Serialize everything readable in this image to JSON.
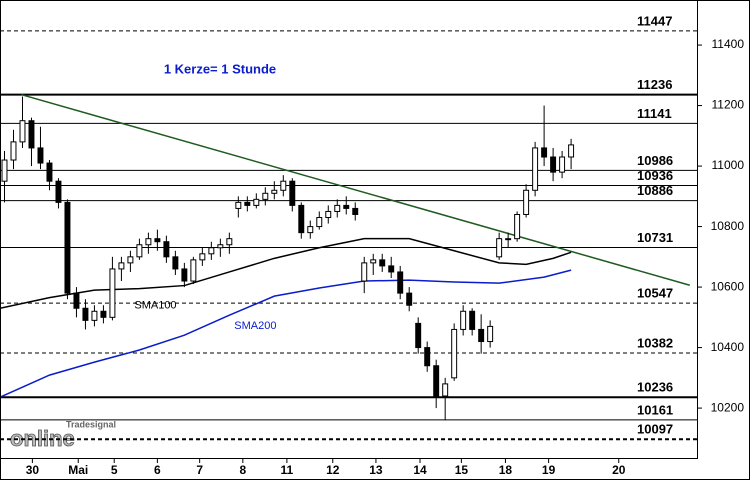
{
  "chart_data": {
    "type": "candlestick",
    "annotation": "1 Kerze= 1 Stunde",
    "watermark": [
      "Tradesignal",
      "online"
    ],
    "xlim": [
      -0.5,
      77
    ],
    "xticks": [
      {
        "value": 3.1,
        "label": "30"
      },
      {
        "value": 8.2,
        "label": "Mai"
      },
      {
        "value": 12.2,
        "label": "5"
      },
      {
        "value": 17,
        "label": "6"
      },
      {
        "value": 21.7,
        "label": "7"
      },
      {
        "value": 26.5,
        "label": "8"
      },
      {
        "value": 31.4,
        "label": "11"
      },
      {
        "value": 36.5,
        "label": "12"
      },
      {
        "value": 41.3,
        "label": "13"
      },
      {
        "value": 46.2,
        "label": "14"
      },
      {
        "value": 50.8,
        "label": "15"
      },
      {
        "value": 55.7,
        "label": "18"
      },
      {
        "value": 60.5,
        "label": "19"
      },
      {
        "value": 68.3,
        "label": "20"
      }
    ],
    "ylim": [
      10035,
      11549
    ],
    "yticks": [
      10200,
      10400,
      10600,
      10800,
      11000,
      11200,
      11400
    ],
    "levels": [
      11447,
      11236,
      11141,
      10986,
      10936,
      10886,
      10731,
      10547,
      10382,
      10236,
      10161,
      10097
    ],
    "level_styles": [
      "dashed",
      "bold",
      "solid",
      "solid",
      "solid",
      "solid",
      "solid",
      "dashed",
      "dashed",
      "bold",
      "solid",
      "bold-dashed"
    ],
    "up_color": "#ffffff",
    "down_color": "#000000",
    "open": [
      10950,
      11020,
      11080,
      11150,
      11060,
      11010,
      10950,
      10880,
      10580,
      10530,
      10490,
      10520,
      10500,
      10660,
      10680,
      10700,
      10740,
      10760,
      10750,
      10700,
      10660,
      10620,
      10690,
      10710,
      10730,
      10740,
      10860,
      10880,
      10870,
      10890,
      10910,
      10920,
      10950,
      10870,
      10780,
      10800,
      10830,
      10850,
      10870,
      10860,
      10620,
      10680,
      10690,
      10670,
      10650,
      10580,
      10480,
      10400,
      10340,
      10240,
      10300,
      10460,
      10520,
      10460,
      10420,
      10700,
      10760,
      10760,
      10840,
      10920,
      11060,
      11030,
      10980,
      11030
    ],
    "high": [
      11050,
      11120,
      11230,
      11160,
      11130,
      11020,
      10960,
      10890,
      10600,
      10560,
      10540,
      10540,
      10700,
      10700,
      10720,
      10760,
      10780,
      10790,
      10770,
      10720,
      10680,
      10700,
      10730,
      10750,
      10760,
      10780,
      10900,
      10900,
      10910,
      10930,
      10950,
      10970,
      10960,
      10880,
      10820,
      10850,
      10870,
      10890,
      10900,
      10880,
      10700,
      10710,
      10710,
      10700,
      10670,
      10600,
      10500,
      10420,
      10360,
      10300,
      10480,
      10540,
      10530,
      10510,
      10490,
      10780,
      10780,
      10850,
      10940,
      11080,
      11200,
      11060,
      11050,
      11090
    ],
    "low": [
      10880,
      10990,
      11060,
      11000,
      10990,
      10920,
      10860,
      10560,
      10500,
      10460,
      10470,
      10480,
      10490,
      10620,
      10650,
      10690,
      10710,
      10720,
      10680,
      10640,
      10600,
      10610,
      10670,
      10690,
      10700,
      10710,
      10830,
      10850,
      10860,
      10870,
      10890,
      10900,
      10850,
      10760,
      10760,
      10790,
      10810,
      10830,
      10840,
      10820,
      10580,
      10640,
      10650,
      10630,
      10560,
      10520,
      10380,
      10320,
      10200,
      10160,
      10290,
      10440,
      10440,
      10380,
      10400,
      10690,
      10730,
      10750,
      10830,
      10900,
      11000,
      10950,
      10960,
      10990
    ],
    "close": [
      11020,
      11080,
      11150,
      11060,
      11010,
      10950,
      10880,
      10580,
      10530,
      10490,
      10520,
      10500,
      10660,
      10680,
      10700,
      10740,
      10760,
      10750,
      10700,
      10660,
      10620,
      10690,
      10710,
      10730,
      10740,
      10760,
      10880,
      10870,
      10890,
      10910,
      10920,
      10950,
      10870,
      10780,
      10800,
      10830,
      10850,
      10870,
      10860,
      10840,
      10680,
      10690,
      10670,
      10650,
      10580,
      10540,
      10400,
      10340,
      10240,
      10280,
      10460,
      10520,
      10460,
      10420,
      10470,
      10760,
      10760,
      10840,
      10920,
      11060,
      11030,
      10980,
      11030,
      11070
    ],
    "series": [
      {
        "name": "SMA100",
        "color": "#000000",
        "x": [
          -0.5,
          5,
          10,
          15,
          20,
          25,
          30,
          35,
          40,
          45,
          50,
          55,
          58,
          61,
          63
        ],
        "values": [
          10530,
          10565,
          10590,
          10595,
          10605,
          10650,
          10695,
          10730,
          10760,
          10760,
          10720,
          10680,
          10675,
          10695,
          10715
        ]
      },
      {
        "name": "SMA200",
        "color": "#0a1ccc",
        "x": [
          -0.5,
          5,
          10,
          15,
          20,
          25,
          30,
          35,
          40,
          45,
          50,
          55,
          60,
          63
        ],
        "values": [
          10236,
          10309,
          10352,
          10392,
          10441,
          10507,
          10570,
          10597,
          10620,
          10623,
          10617,
          10613,
          10633,
          10656
        ]
      }
    ],
    "trendline": {
      "color": "#1f5a1f",
      "x": [
        1.9,
        76.2
      ],
      "values": [
        11236,
        10606
      ]
    }
  }
}
